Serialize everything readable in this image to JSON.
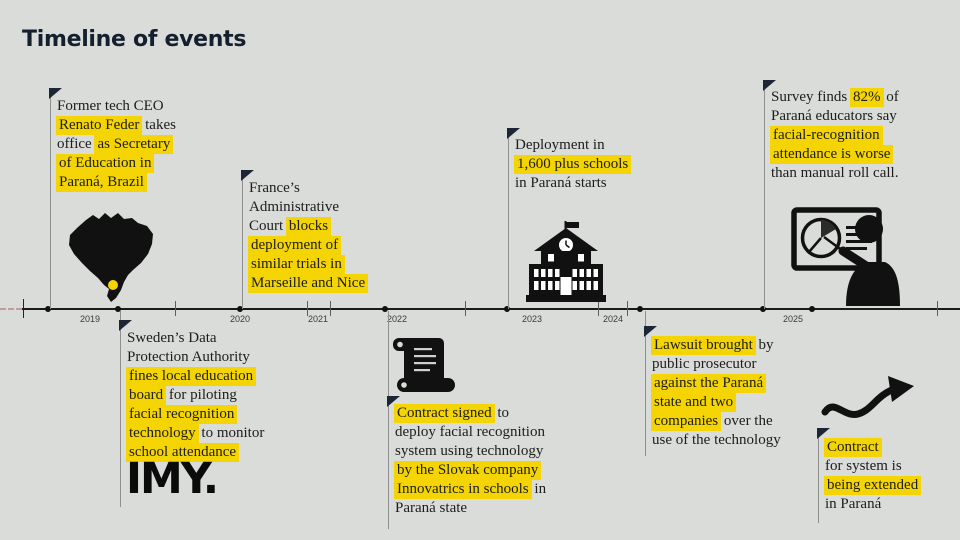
{
  "title": "Timeline of events",
  "colors": {
    "background": "#dadcd9",
    "highlight": "#f4d503",
    "title": "#14202e",
    "text": "#1d1d1b",
    "axis": "#1a1a1a",
    "axis_dash": "#c59a9a",
    "parana_dot": "#f4d503"
  },
  "axis": {
    "years": [
      "2019",
      "2020",
      "2021",
      "2022",
      "2023",
      "2024",
      "2025"
    ]
  },
  "icons": {
    "brazil_map": "brazil-map-silhouette-with-parana-dot",
    "school": "school-building",
    "scroll": "contract-scroll-document",
    "presenter": "person-presenting-pie-chart-board",
    "arrow": "curved-up-right-arrow",
    "flag_marker": "event-flag-marker"
  },
  "events": [
    {
      "name": "feder-takes-office",
      "lines": [
        [
          {
            "t": "Former tech CEO"
          }
        ],
        [
          {
            "t": "Renato Feder",
            "h": true
          },
          {
            "t": " takes"
          }
        ],
        [
          {
            "t": "office "
          },
          {
            "t": "as Secretary",
            "h": true
          }
        ],
        [
          {
            "t": "of Education in",
            "h": true
          }
        ],
        [
          {
            "t": "Paraná, Brazil",
            "h": true
          }
        ]
      ]
    },
    {
      "name": "france-court-blocks",
      "lines": [
        [
          {
            "t": "France’s"
          }
        ],
        [
          {
            "t": "Administrative"
          }
        ],
        [
          {
            "t": "Court "
          },
          {
            "t": "blocks",
            "h": true
          }
        ],
        [
          {
            "t": "deployment of",
            "h": true
          }
        ],
        [
          {
            "t": "similar trials in",
            "h": true
          }
        ],
        [
          {
            "t": "Marseille and Nice",
            "h": true
          }
        ]
      ]
    },
    {
      "name": "deployment-starts",
      "lines": [
        [
          {
            "t": "Deployment in"
          }
        ],
        [
          {
            "t": "1,600 plus schools",
            "h": true
          }
        ],
        [
          {
            "t": "in Paraná starts"
          }
        ]
      ]
    },
    {
      "name": "survey-educators",
      "lines": [
        [
          {
            "t": "Survey finds "
          },
          {
            "t": "82%",
            "h": true
          },
          {
            "t": " of"
          }
        ],
        [
          {
            "t": "Paraná educators say"
          }
        ],
        [
          {
            "t": "facial-recognition",
            "h": true
          }
        ],
        [
          {
            "t": "attendance is worse",
            "h": true
          }
        ],
        [
          {
            "t": "than manual roll call."
          }
        ]
      ]
    },
    {
      "name": "sweden-fine",
      "logo": "IMY.",
      "lines": [
        [
          {
            "t": "Sweden’s Data"
          }
        ],
        [
          {
            "t": "Protection Authority"
          }
        ],
        [
          {
            "t": "fines local education",
            "h": true
          }
        ],
        [
          {
            "t": "board",
            "h": true
          },
          {
            "t": " for piloting"
          }
        ],
        [
          {
            "t": "facial recognition",
            "h": true
          }
        ],
        [
          {
            "t": "technology",
            "h": true
          },
          {
            "t": " to monitor"
          }
        ],
        [
          {
            "t": "school attendance",
            "h": true
          }
        ]
      ]
    },
    {
      "name": "contract-signed",
      "lines": [
        [
          {
            "t": "Contract signed",
            "h": true
          },
          {
            "t": " to"
          }
        ],
        [
          {
            "t": "deploy facial recognition"
          }
        ],
        [
          {
            "t": "system using technology"
          }
        ],
        [
          {
            "t": "by the Slovak company",
            "h": true
          }
        ],
        [
          {
            "t": "Innovatrics in schools",
            "h": true
          },
          {
            "t": " in"
          }
        ],
        [
          {
            "t": "Paraná state"
          }
        ]
      ]
    },
    {
      "name": "lawsuit-brought",
      "lines": [
        [
          {
            "t": "Lawsuit brought",
            "h": true
          },
          {
            "t": " by"
          }
        ],
        [
          {
            "t": "public prosecutor"
          }
        ],
        [
          {
            "t": "against the Paraná",
            "h": true
          }
        ],
        [
          {
            "t": "state and two",
            "h": true
          }
        ],
        [
          {
            "t": "companies",
            "h": true
          },
          {
            "t": " over the"
          }
        ],
        [
          {
            "t": "use of the technology"
          }
        ]
      ]
    },
    {
      "name": "contract-extended",
      "lines": [
        [
          {
            "t": "Contract",
            "h": true
          }
        ],
        [
          {
            "t": "for system is"
          }
        ],
        [
          {
            "t": "being extended",
            "h": true
          }
        ],
        [
          {
            "t": "in Paraná"
          }
        ]
      ]
    }
  ]
}
